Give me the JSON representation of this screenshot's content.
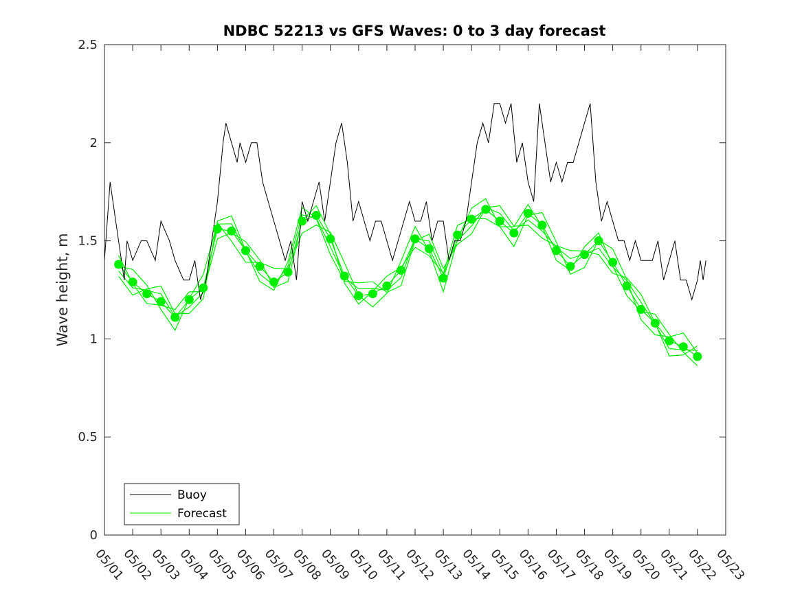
{
  "chart_data": {
    "type": "line",
    "title": "NDBC 52213 vs GFS Waves: 0 to 3 day forecast",
    "xlabel": "",
    "ylabel": "Wave height, m",
    "x_tick_labels": [
      "05/01",
      "05/02",
      "05/03",
      "05/04",
      "05/05",
      "05/06",
      "05/07",
      "05/08",
      "05/09",
      "05/10",
      "05/11",
      "05/12",
      "05/13",
      "05/14",
      "05/15",
      "05/16",
      "05/17",
      "05/18",
      "05/19",
      "05/20",
      "05/21",
      "05/22",
      "05/23"
    ],
    "y_ticks": [
      0,
      0.5,
      1,
      1.5,
      2,
      2.5
    ],
    "y_tick_labels": [
      "0",
      "0.5",
      "1",
      "1.5",
      "2",
      "2.5"
    ],
    "xlim_days": [
      0,
      22
    ],
    "ylim": [
      0,
      2.5
    ],
    "grid": false,
    "legend": {
      "position": "bottom-left",
      "entries": [
        "Buoy",
        "Forecast"
      ]
    },
    "colors": {
      "buoy": "#000000",
      "forecast": "#00ee00"
    },
    "series": [
      {
        "name": "Buoy",
        "x_days": [
          0.0,
          0.1,
          0.2,
          0.3,
          0.4,
          0.5,
          0.6,
          0.7,
          0.8,
          1.0,
          1.3,
          1.5,
          1.8,
          2.0,
          2.3,
          2.5,
          2.8,
          3.0,
          3.2,
          3.4,
          3.6,
          3.8,
          4.0,
          4.2,
          4.3,
          4.5,
          4.7,
          4.8,
          5.0,
          5.2,
          5.4,
          5.6,
          5.8,
          6.0,
          6.2,
          6.4,
          6.6,
          6.8,
          7.0,
          7.2,
          7.4,
          7.6,
          7.8,
          8.0,
          8.2,
          8.4,
          8.6,
          8.8,
          9.0,
          9.2,
          9.4,
          9.6,
          9.8,
          10.0,
          10.2,
          10.4,
          10.6,
          10.8,
          11.0,
          11.2,
          11.4,
          11.6,
          11.8,
          12.0,
          12.2,
          12.4,
          12.6,
          12.8,
          13.0,
          13.2,
          13.4,
          13.6,
          13.8,
          14.0,
          14.2,
          14.4,
          14.6,
          14.8,
          15.0,
          15.2,
          15.4,
          15.6,
          15.8,
          16.0,
          16.2,
          16.4,
          16.6,
          16.8,
          17.0,
          17.2,
          17.4,
          17.6,
          17.8,
          18.0,
          18.2,
          18.4,
          18.6,
          18.8,
          19.0,
          19.2,
          19.4,
          19.6,
          19.8,
          20.0,
          20.2,
          20.4,
          20.6,
          20.8,
          21.0,
          21.1,
          21.2,
          21.3
        ],
        "values": [
          1.4,
          1.6,
          1.8,
          1.7,
          1.6,
          1.5,
          1.4,
          1.3,
          1.5,
          1.4,
          1.5,
          1.5,
          1.4,
          1.6,
          1.5,
          1.4,
          1.3,
          1.3,
          1.4,
          1.2,
          1.3,
          1.5,
          1.7,
          2.0,
          2.1,
          2.0,
          1.9,
          2.0,
          1.9,
          2.0,
          2.0,
          1.8,
          1.7,
          1.6,
          1.5,
          1.4,
          1.5,
          1.3,
          1.7,
          1.6,
          1.7,
          1.8,
          1.6,
          1.8,
          2.0,
          2.1,
          1.9,
          1.6,
          1.7,
          1.6,
          1.5,
          1.6,
          1.6,
          1.5,
          1.4,
          1.5,
          1.6,
          1.7,
          1.6,
          1.6,
          1.7,
          1.5,
          1.6,
          1.6,
          1.4,
          1.5,
          1.5,
          1.6,
          1.8,
          2.0,
          2.1,
          2.0,
          2.2,
          2.2,
          2.1,
          2.2,
          1.9,
          2.0,
          1.8,
          1.7,
          2.2,
          2.0,
          1.8,
          1.9,
          1.8,
          1.9,
          1.9,
          2.0,
          2.1,
          2.2,
          1.8,
          1.6,
          1.7,
          1.6,
          1.5,
          1.5,
          1.4,
          1.5,
          1.4,
          1.4,
          1.4,
          1.5,
          1.3,
          1.4,
          1.5,
          1.3,
          1.3,
          1.2,
          1.3,
          1.4,
          1.3,
          1.4
        ]
      },
      {
        "name": "Forecast",
        "markers_x_days": [
          0.5,
          1.0,
          1.5,
          2.0,
          2.5,
          3.0,
          3.5,
          4.0,
          4.5,
          5.0,
          5.5,
          6.0,
          6.5,
          7.0,
          7.5,
          8.0,
          8.5,
          9.0,
          9.5,
          10.0,
          10.5,
          11.0,
          11.5,
          12.0,
          12.5,
          13.0,
          13.5,
          14.0,
          14.5,
          15.0,
          15.5,
          16.0,
          16.5,
          17.0,
          17.5,
          18.0,
          18.5,
          19.0,
          19.5,
          20.0,
          20.5,
          21.0
        ],
        "markers_values": [
          1.38,
          1.29,
          1.23,
          1.19,
          1.11,
          1.2,
          1.26,
          1.56,
          1.55,
          1.45,
          1.37,
          1.29,
          1.34,
          1.6,
          1.63,
          1.51,
          1.32,
          1.22,
          1.23,
          1.27,
          1.35,
          1.51,
          1.46,
          1.31,
          1.53,
          1.61,
          1.66,
          1.6,
          1.54,
          1.64,
          1.58,
          1.45,
          1.37,
          1.43,
          1.5,
          1.39,
          1.27,
          1.15,
          1.08,
          0.99,
          0.96,
          0.91
        ]
      }
    ]
  }
}
